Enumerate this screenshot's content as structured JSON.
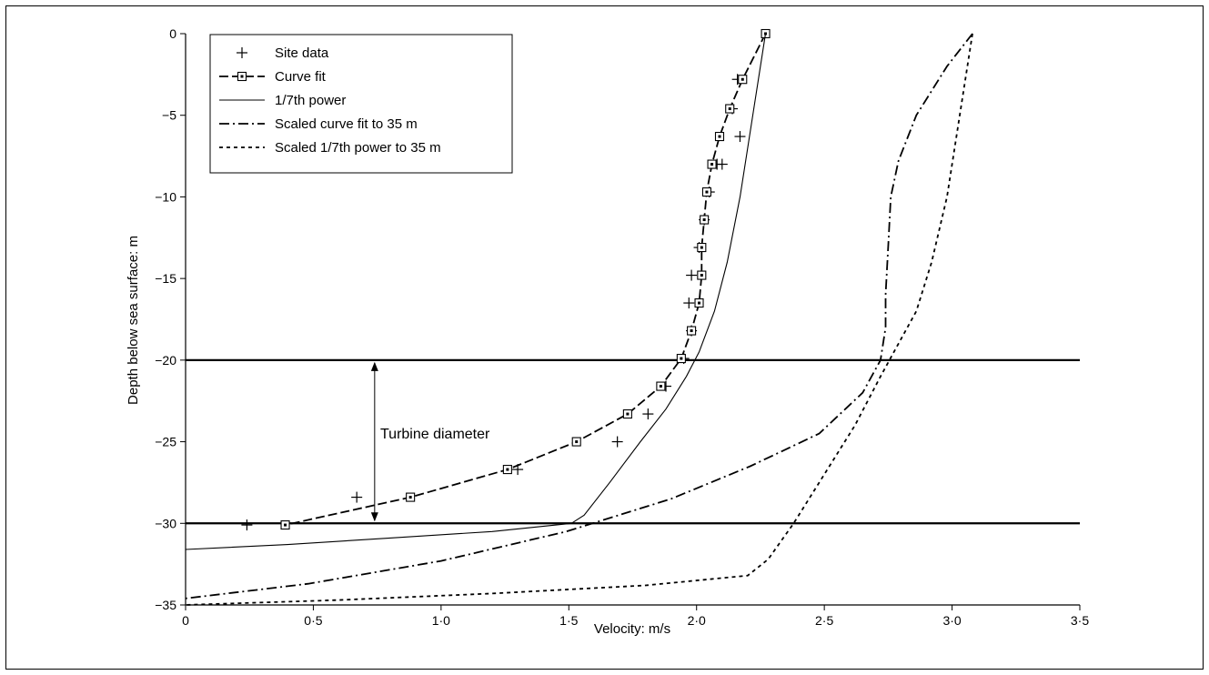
{
  "chart_data": {
    "type": "line",
    "xlabel": "Velocity: m/s",
    "ylabel": "Depth below sea surface: m",
    "xlim": [
      0,
      3.5
    ],
    "ylim": [
      -35,
      0
    ],
    "x_ticks": [
      0,
      0.5,
      1.0,
      1.5,
      2.0,
      2.5,
      3.0,
      3.5
    ],
    "x_tick_labels": [
      "0",
      "0·5",
      "1·0",
      "1·5",
      "2·0",
      "2·5",
      "3·0",
      "3·5"
    ],
    "y_ticks": [
      0,
      -5,
      -10,
      -15,
      -20,
      -25,
      -30,
      -35
    ],
    "y_tick_labels": [
      "0",
      "−5",
      "−10",
      "−15",
      "−20",
      "−25",
      "−30",
      "−35"
    ],
    "grid": false,
    "legend_position": "top-left",
    "annotation": {
      "text": "Turbine diameter",
      "from_y": -20,
      "to_y": -30,
      "x": 0.74
    },
    "horizontal_lines": [
      -20,
      -30
    ],
    "series": [
      {
        "name": "Site data",
        "style": "markers-plus",
        "x": [
          2.16,
          2.14,
          2.17,
          2.1,
          2.08,
          2.05,
          2.03,
          2.01,
          1.98,
          1.97,
          1.98,
          1.95,
          1.88,
          1.81,
          1.69,
          1.3,
          0.67,
          0.24
        ],
        "y": [
          -2.8,
          -4.6,
          -6.3,
          -8.0,
          -8.0,
          -9.7,
          -11.4,
          -13.1,
          -14.8,
          -16.5,
          -18.2,
          -19.9,
          -21.6,
          -23.3,
          -25.0,
          -26.7,
          -28.4,
          -30.1
        ]
      },
      {
        "name": "Curve fit",
        "style": "dash-square",
        "x": [
          2.27,
          2.18,
          2.13,
          2.09,
          2.06,
          2.04,
          2.03,
          2.02,
          2.02,
          2.01,
          1.98,
          1.94,
          1.86,
          1.73,
          1.53,
          1.26,
          0.88,
          0.39
        ],
        "y": [
          0,
          -2.8,
          -4.6,
          -6.3,
          -8.0,
          -9.7,
          -11.4,
          -13.1,
          -14.8,
          -16.5,
          -18.2,
          -19.9,
          -21.6,
          -23.3,
          -25.0,
          -26.7,
          -28.4,
          -30.1
        ]
      },
      {
        "name": "1/7th power",
        "style": "solid-thin",
        "x": [
          2.27,
          2.22,
          2.17,
          2.12,
          2.07,
          2.01,
          1.96,
          1.88,
          1.78,
          1.66,
          1.56,
          1.51,
          1.2,
          0.8,
          0.4,
          0.0
        ],
        "y": [
          0,
          -5,
          -10,
          -14,
          -17,
          -19.5,
          -21,
          -23,
          -25,
          -27.5,
          -29.5,
          -30,
          -30.5,
          -30.9,
          -31.3,
          -31.6
        ]
      },
      {
        "name": "Scaled curve fit to 35 m",
        "style": "dash-dot",
        "x": [
          3.08,
          2.98,
          2.86,
          2.79,
          2.76,
          2.75,
          2.74,
          2.74,
          2.72,
          2.65,
          2.48,
          2.21,
          1.9,
          1.49,
          1.0,
          0.48,
          0.0
        ],
        "y": [
          0,
          -2,
          -5,
          -7.8,
          -10,
          -13,
          -16,
          -18,
          -20,
          -22,
          -24.5,
          -26.5,
          -28.5,
          -30.5,
          -32.3,
          -33.7,
          -34.6
        ]
      },
      {
        "name": "Scaled 1/7th power to 35 m",
        "style": "dotted",
        "x": [
          3.08,
          3.03,
          2.98,
          2.92,
          2.86,
          2.79,
          2.72,
          2.62,
          2.5,
          2.38,
          2.28,
          2.2,
          1.8,
          1.2,
          0.6,
          0.0
        ],
        "y": [
          0,
          -5,
          -10,
          -14,
          -17,
          -19,
          -21,
          -24,
          -27,
          -30,
          -32.2,
          -33.2,
          -33.8,
          -34.3,
          -34.7,
          -35
        ]
      }
    ]
  }
}
